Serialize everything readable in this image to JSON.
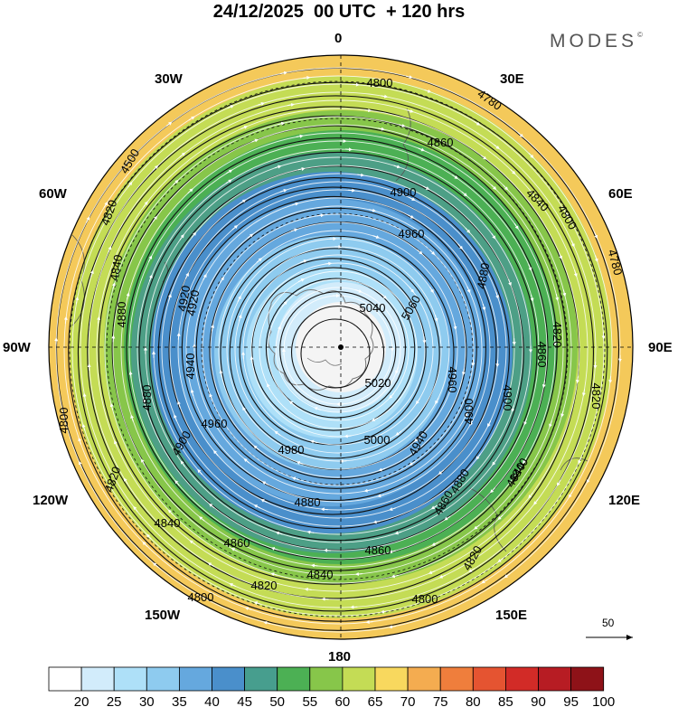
{
  "header": {
    "title": "24/12/2025  00 UTC  + 120 hrs",
    "brand": "MODES",
    "brand_mark": "©"
  },
  "map": {
    "projection": "polar-stereographic-south",
    "longitude_labels": {
      "deg0": "0",
      "deg30e": "30E",
      "deg60e": "60E",
      "deg90e": "90E",
      "deg120e": "120E",
      "deg150e": "150E",
      "deg180": "180",
      "deg150w": "150W",
      "deg120w": "120W",
      "deg90w": "90W",
      "deg60w": "60W",
      "deg30w": "30W"
    },
    "contour_labels": [
      "4800",
      "4780",
      "4860",
      "4900",
      "4840",
      "4800",
      "4780",
      "4920",
      "4960",
      "4880",
      "4820",
      "5040",
      "5060",
      "4960",
      "4900",
      "4860",
      "5020",
      "4900",
      "5000",
      "4940",
      "4880",
      "4840",
      "4820",
      "4880",
      "4860",
      "4820",
      "4800",
      "4860",
      "4840",
      "4820",
      "4800",
      "4900",
      "4960",
      "4980",
      "4880",
      "4820",
      "4840",
      "4860",
      "4940",
      "4920",
      "4880",
      "4840",
      "4800",
      "4500",
      "4820",
      "4840"
    ],
    "reference_vector": {
      "label": "50",
      "value": 50
    }
  },
  "colorbar": {
    "levels": [
      "20",
      "25",
      "30",
      "35",
      "40",
      "45",
      "50",
      "55",
      "60",
      "65",
      "70",
      "75",
      "80",
      "85",
      "90",
      "95",
      "100"
    ],
    "colors": [
      "#ffffff",
      "#d2ecfb",
      "#aee0f8",
      "#8ecbef",
      "#65a8de",
      "#4a8fcb",
      "#479e8e",
      "#4cb054",
      "#87c64a",
      "#c4dc55",
      "#f8d85e",
      "#f4ac50",
      "#ef7e3c",
      "#e55431",
      "#d22b27",
      "#b71c23",
      "#8e1218"
    ]
  }
}
